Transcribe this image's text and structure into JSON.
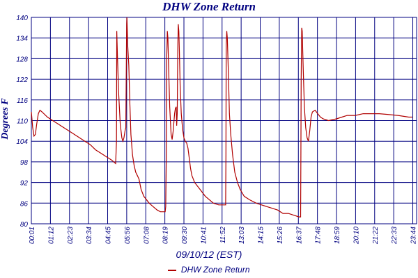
{
  "chart_data": {
    "type": "line",
    "title": "DHW Zone Return",
    "xlabel": "09/10/12 (EST)",
    "ylabel": "Degrees F",
    "ylim": [
      80,
      140
    ],
    "yticks": [
      "80",
      "86",
      "92",
      "98",
      "104",
      "110",
      "116",
      "122",
      "128",
      "134",
      "140"
    ],
    "xticks": [
      "00:01",
      "01:12",
      "02:23",
      "03:34",
      "04:45",
      "05:56",
      "07:08",
      "08:19",
      "09:30",
      "10:41",
      "11:52",
      "13:03",
      "14:15",
      "15:26",
      "16:37",
      "17:48",
      "18:59",
      "20:10",
      "21:22",
      "22:33",
      "23:44"
    ],
    "grid": true,
    "legend": "bottom",
    "series": [
      {
        "name": "DHW Zone Return",
        "color": "#b00000",
        "points": [
          [
            0,
            112.5
          ],
          [
            5,
            108
          ],
          [
            10,
            105.5
          ],
          [
            15,
            106
          ],
          [
            20,
            109
          ],
          [
            26,
            112
          ],
          [
            32,
            113
          ],
          [
            40,
            112.5
          ],
          [
            60,
            111
          ],
          [
            80,
            110
          ],
          [
            100,
            109
          ],
          [
            120,
            108
          ],
          [
            140,
            107
          ],
          [
            160,
            106
          ],
          [
            180,
            105
          ],
          [
            200,
            104
          ],
          [
            220,
            103
          ],
          [
            240,
            101.5
          ],
          [
            260,
            100.5
          ],
          [
            280,
            99.5
          ],
          [
            300,
            98.5
          ],
          [
            315,
            97.5
          ],
          [
            318,
            104
          ],
          [
            319,
            136
          ],
          [
            322,
            128
          ],
          [
            326,
            118
          ],
          [
            332,
            109
          ],
          [
            338,
            105
          ],
          [
            342,
            104
          ],
          [
            346,
            105
          ],
          [
            350,
            107
          ],
          [
            353,
            108
          ],
          [
            356,
            138
          ],
          [
            357,
            140
          ],
          [
            360,
            132
          ],
          [
            364,
            126
          ],
          [
            368,
            115
          ],
          [
            372,
            106
          ],
          [
            378,
            100
          ],
          [
            384,
            97
          ],
          [
            390,
            95
          ],
          [
            396,
            94
          ],
          [
            402,
            93
          ],
          [
            410,
            90
          ],
          [
            420,
            88
          ],
          [
            440,
            86
          ],
          [
            455,
            85
          ],
          [
            470,
            84
          ],
          [
            482,
            83.5
          ],
          [
            500,
            83.5
          ],
          [
            502,
            85
          ],
          [
            504,
            100
          ],
          [
            506,
            129
          ],
          [
            508,
            136
          ],
          [
            510,
            134
          ],
          [
            513,
            125
          ],
          [
            517,
            114
          ],
          [
            522,
            106
          ],
          [
            526,
            104.5
          ],
          [
            530,
            107
          ],
          [
            535,
            112
          ],
          [
            538,
            113.5
          ],
          [
            541,
            114
          ],
          [
            543,
            108.5
          ],
          [
            545,
            112
          ],
          [
            547,
            131
          ],
          [
            549,
            138
          ],
          [
            551,
            136
          ],
          [
            553,
            130
          ],
          [
            556,
            120
          ],
          [
            560,
            112
          ],
          [
            565,
            107.5
          ],
          [
            570,
            105
          ],
          [
            575,
            104
          ],
          [
            580,
            103.5
          ],
          [
            585,
            102
          ],
          [
            590,
            99
          ],
          [
            595,
            96
          ],
          [
            600,
            94
          ],
          [
            610,
            92
          ],
          [
            630,
            90
          ],
          [
            650,
            88
          ],
          [
            680,
            86
          ],
          [
            700,
            85.5
          ],
          [
            720,
            85.5
          ],
          [
            726,
            85.5
          ],
          [
            727,
            100
          ],
          [
            728,
            132
          ],
          [
            730,
            136
          ],
          [
            732,
            134
          ],
          [
            736,
            124
          ],
          [
            740,
            112
          ],
          [
            745,
            106
          ],
          [
            752,
            100
          ],
          [
            760,
            95
          ],
          [
            770,
            92
          ],
          [
            780,
            90
          ],
          [
            795,
            88
          ],
          [
            815,
            87
          ],
          [
            840,
            86
          ],
          [
            860,
            85.5
          ],
          [
            880,
            85
          ],
          [
            900,
            84.5
          ],
          [
            920,
            84
          ],
          [
            940,
            83
          ],
          [
            960,
            83
          ],
          [
            980,
            82.5
          ],
          [
            1000,
            82
          ],
          [
            1006,
            82
          ],
          [
            1007,
            100
          ],
          [
            1008,
            122
          ],
          [
            1010,
            137
          ],
          [
            1012,
            136
          ],
          [
            1016,
            124
          ],
          [
            1020,
            114
          ],
          [
            1025,
            108
          ],
          [
            1030,
            105
          ],
          [
            1035,
            104
          ],
          [
            1040,
            107
          ],
          [
            1045,
            111
          ],
          [
            1050,
            112.5
          ],
          [
            1060,
            113
          ],
          [
            1070,
            112
          ],
          [
            1080,
            111
          ],
          [
            1090,
            110.5
          ],
          [
            1110,
            110
          ],
          [
            1140,
            110.5
          ],
          [
            1160,
            111
          ],
          [
            1180,
            111.5
          ],
          [
            1210,
            111.5
          ],
          [
            1240,
            112
          ],
          [
            1270,
            112
          ],
          [
            1300,
            112
          ],
          [
            1330,
            111.8
          ],
          [
            1370,
            111.5
          ],
          [
            1410,
            111
          ],
          [
            1423,
            111
          ]
        ]
      }
    ]
  }
}
